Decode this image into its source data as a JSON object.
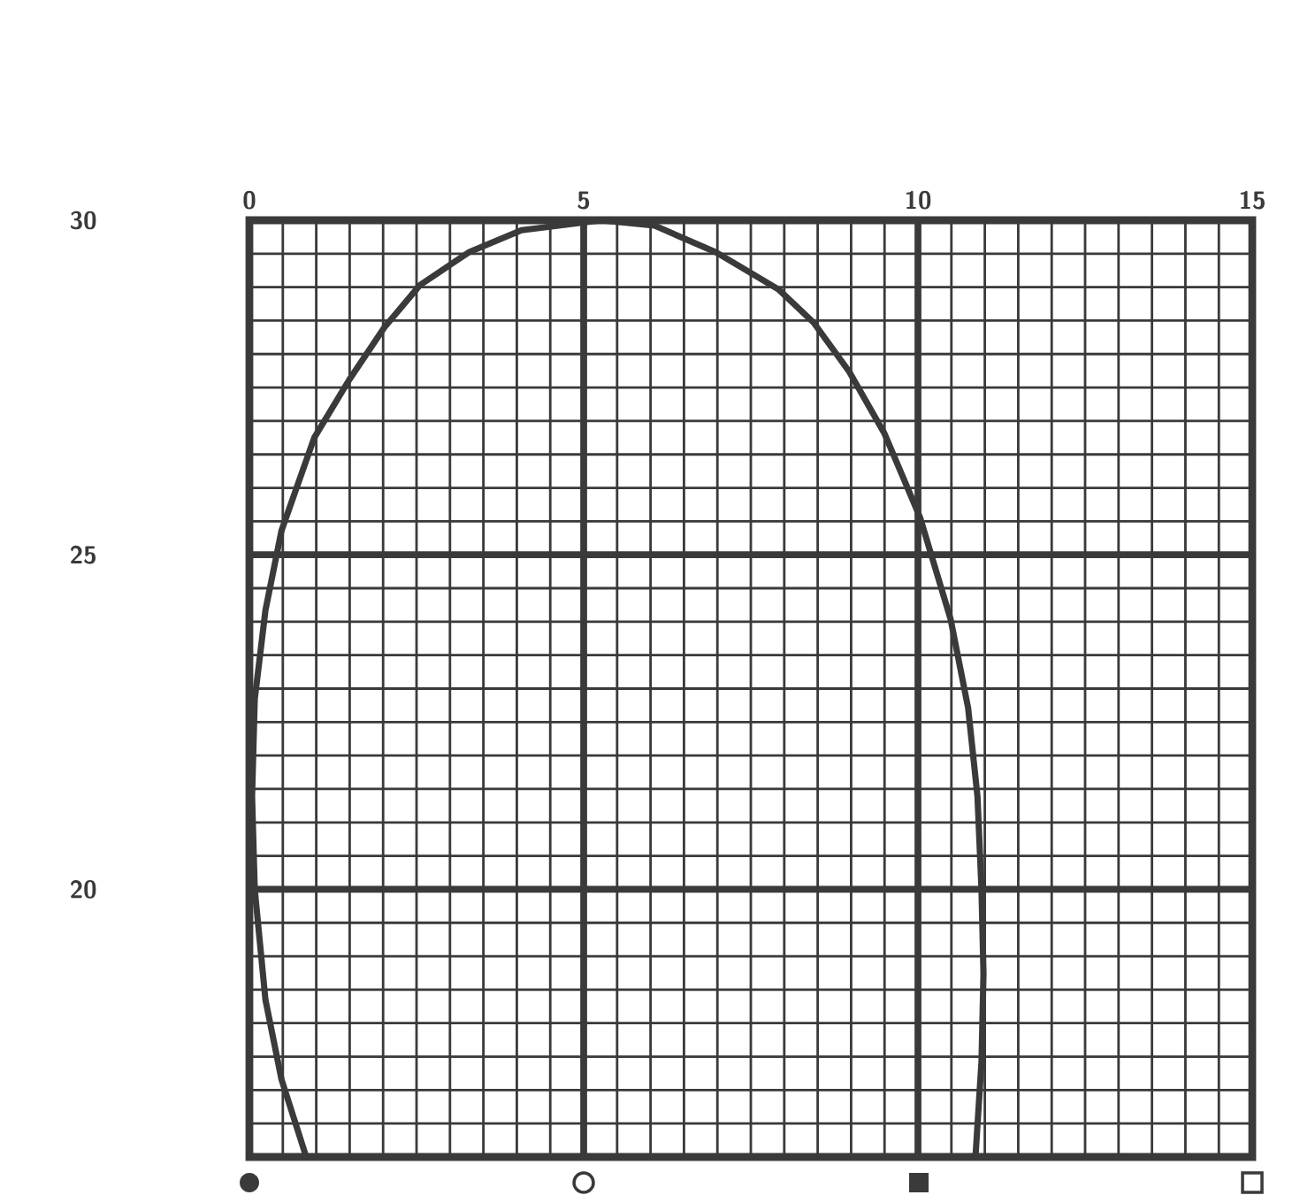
{
  "chart_data": {
    "type": "line",
    "x": [
      0.85,
      0.48,
      0.24,
      0.08,
      0.04,
      0.08,
      0.24,
      0.48,
      0.97,
      1.49,
      2.02,
      2.55,
      3.28,
      4.07,
      5.26,
      6.06,
      6.98,
      7.91,
      8.44,
      8.97,
      9.5,
      10.03,
      10.49,
      10.75,
      10.89,
      10.95,
      10.98,
      10.95,
      10.86
    ],
    "values": [
      16.0,
      17.16,
      18.35,
      20.0,
      21.39,
      22.84,
      24.17,
      25.36,
      26.75,
      27.61,
      28.4,
      29.03,
      29.52,
      29.85,
      30.0,
      29.92,
      29.52,
      28.97,
      28.47,
      27.74,
      26.81,
      25.56,
      24.03,
      22.71,
      21.39,
      20.0,
      18.74,
      17.42,
      16.0
    ],
    "color": "#3a3a3a",
    "xlim": [
      0,
      15
    ],
    "ylim": [
      16,
      30
    ],
    "xticks": [
      0,
      5,
      10,
      15
    ],
    "yticks": [
      {
        "value": 16,
        "label": null
      },
      20,
      25,
      30
    ],
    "grid": true
  }
}
